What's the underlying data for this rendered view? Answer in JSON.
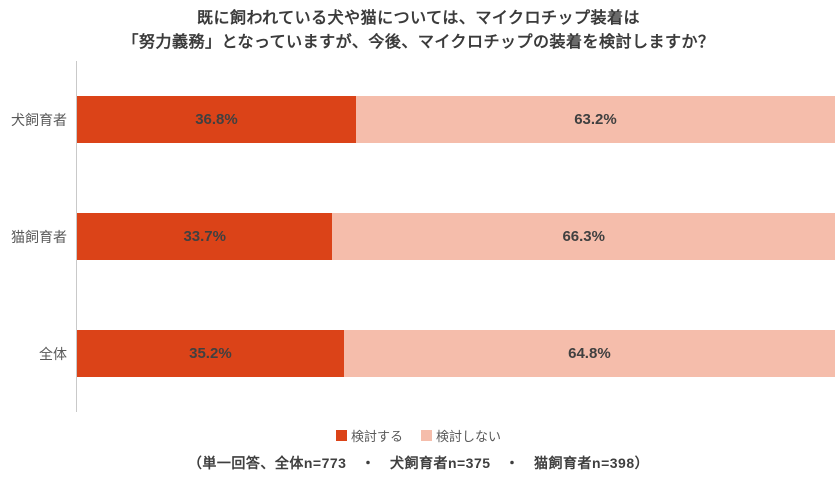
{
  "title": {
    "line1": "既に飼われている犬や猫については、マイクロチップ装着は",
    "line2": "「努力義務」となっていますが、今後、マイクロチップの装着を検討しますか？"
  },
  "chart_data": {
    "type": "bar",
    "orientation": "horizontal",
    "stacked": true,
    "unit": "%",
    "xlim": [
      0,
      100
    ],
    "grid": false,
    "legend_position": "bottom",
    "categories": [
      "犬飼育者",
      "猫飼育者",
      "全体"
    ],
    "series": [
      {
        "name": "検討する",
        "color": "#db4318",
        "values": [
          36.8,
          33.7,
          35.2
        ]
      },
      {
        "name": "検討しない",
        "color": "#f5bdab",
        "values": [
          63.2,
          66.3,
          64.8
        ]
      }
    ],
    "value_labels": [
      [
        "36.8%",
        "63.2%"
      ],
      [
        "33.7%",
        "66.3%"
      ],
      [
        "35.2%",
        "64.8%"
      ]
    ]
  },
  "footnote": "（単一回答、全体n=773　・　犬飼育者n=375　・　猫飼育者n=398）",
  "colors": {
    "consider": "#db4318",
    "not_consider": "#f5bdab",
    "title_text": "#3b3b3b",
    "category_text": "#595959",
    "value_text": "#404040",
    "axis_line": "#c9c9c9",
    "background": "#ffffff"
  }
}
